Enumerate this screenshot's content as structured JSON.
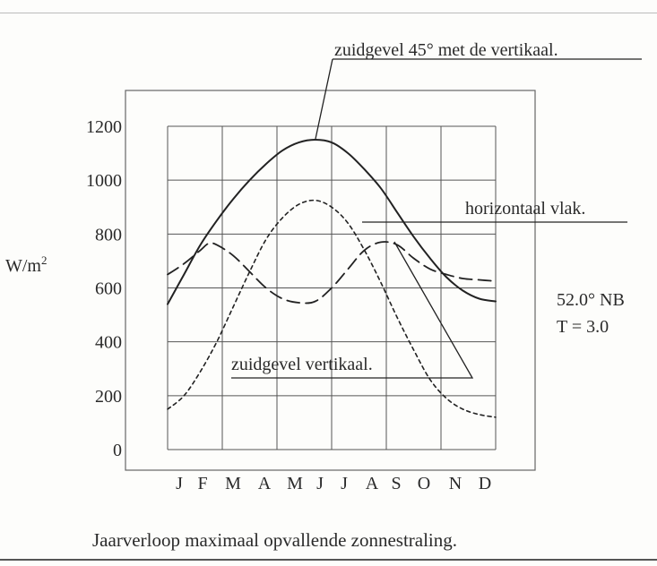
{
  "chart_data": {
    "type": "line",
    "title": "",
    "caption": "Jaarverloop maximaal opvallende zonnestraling.",
    "xlabel": "",
    "ylabel": "W/m",
    "ylabel_superscript": "2",
    "ylim": [
      0,
      1200
    ],
    "yticks": [
      0,
      200,
      400,
      600,
      800,
      1000,
      1200
    ],
    "months": [
      "J",
      "F",
      "M",
      "A",
      "M",
      "J",
      "J",
      "A",
      "S",
      "O",
      "N",
      "D"
    ],
    "grid": true,
    "location_note": [
      "52.0° NB",
      "T = 3.0"
    ],
    "series": [
      {
        "name": "zuidgevel 45° met de vertikaal.",
        "style": "solid",
        "points": [
          [
            0,
            540
          ],
          [
            0.5,
            650
          ],
          [
            1,
            760
          ],
          [
            1.5,
            850
          ],
          [
            2,
            930
          ],
          [
            2.5,
            1000
          ],
          [
            3,
            1060
          ],
          [
            3.5,
            1110
          ],
          [
            4,
            1140
          ],
          [
            4.5,
            1150
          ],
          [
            5,
            1140
          ],
          [
            5.5,
            1100
          ],
          [
            6,
            1040
          ],
          [
            6.5,
            970
          ],
          [
            7,
            880
          ],
          [
            7.5,
            790
          ],
          [
            8,
            710
          ],
          [
            8.5,
            640
          ],
          [
            9,
            590
          ],
          [
            9.5,
            560
          ],
          [
            10,
            550
          ]
        ]
      },
      {
        "name": "horizontaal vlak.",
        "style": "dotted",
        "points": [
          [
            0,
            150
          ],
          [
            0.5,
            200
          ],
          [
            1,
            290
          ],
          [
            1.5,
            400
          ],
          [
            2,
            530
          ],
          [
            2.5,
            660
          ],
          [
            3,
            780
          ],
          [
            3.5,
            860
          ],
          [
            4,
            910
          ],
          [
            4.5,
            925
          ],
          [
            5,
            900
          ],
          [
            5.5,
            840
          ],
          [
            6,
            740
          ],
          [
            6.5,
            620
          ],
          [
            7,
            490
          ],
          [
            7.5,
            370
          ],
          [
            8,
            260
          ],
          [
            8.5,
            190
          ],
          [
            9,
            150
          ],
          [
            9.5,
            130
          ],
          [
            10,
            120
          ]
        ]
      },
      {
        "name": "zuidgevel vertikaal.",
        "style": "dashed",
        "points": [
          [
            0,
            650
          ],
          [
            0.5,
            690
          ],
          [
            1,
            740
          ],
          [
            1.25,
            765
          ],
          [
            1.5,
            760
          ],
          [
            2,
            720
          ],
          [
            2.5,
            660
          ],
          [
            3,
            600
          ],
          [
            3.5,
            560
          ],
          [
            4,
            545
          ],
          [
            4.5,
            550
          ],
          [
            5,
            600
          ],
          [
            5.5,
            670
          ],
          [
            6,
            740
          ],
          [
            6.5,
            770
          ],
          [
            7,
            760
          ],
          [
            7.5,
            710
          ],
          [
            8,
            670
          ],
          [
            8.5,
            650
          ],
          [
            9,
            635
          ],
          [
            9.5,
            630
          ],
          [
            10,
            625
          ]
        ]
      }
    ]
  }
}
